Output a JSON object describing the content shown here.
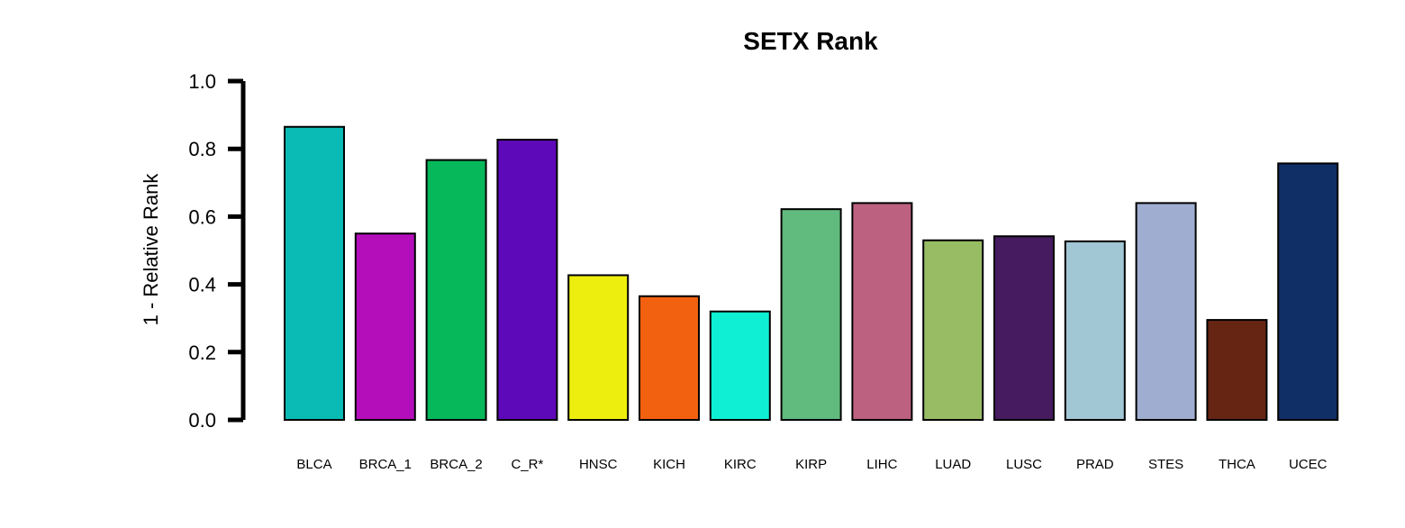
{
  "chart_data": {
    "type": "bar",
    "title": "SETX Rank",
    "xlabel": "",
    "ylabel": "1 - Relative Rank",
    "ylim": [
      0,
      1
    ],
    "yticks": [
      "0.0",
      "0.2",
      "0.4",
      "0.6",
      "0.8",
      "1.0"
    ],
    "grid": false,
    "legend": "none",
    "categories": [
      "BLCA",
      "BRCA_1",
      "BRCA_2",
      "C_R*",
      "HNSC",
      "KICH",
      "KIRC",
      "KIRP",
      "LIHC",
      "LUAD",
      "LUSC",
      "PRAD",
      "STES",
      "THCA",
      "UCEC"
    ],
    "values": [
      0.865,
      0.55,
      0.767,
      0.827,
      0.427,
      0.365,
      0.32,
      0.622,
      0.64,
      0.53,
      0.542,
      0.527,
      0.64,
      0.295,
      0.757
    ],
    "colors": [
      "#0ABAB5",
      "#B40EBA",
      "#07B85A",
      "#5E09B9",
      "#EEEE0E",
      "#F26110",
      "#0EEFD4",
      "#61BA7E",
      "#BC6280",
      "#98BC64",
      "#471B5F",
      "#A1C6D4",
      "#9FADD1",
      "#662512",
      "#0F2F66"
    ]
  }
}
